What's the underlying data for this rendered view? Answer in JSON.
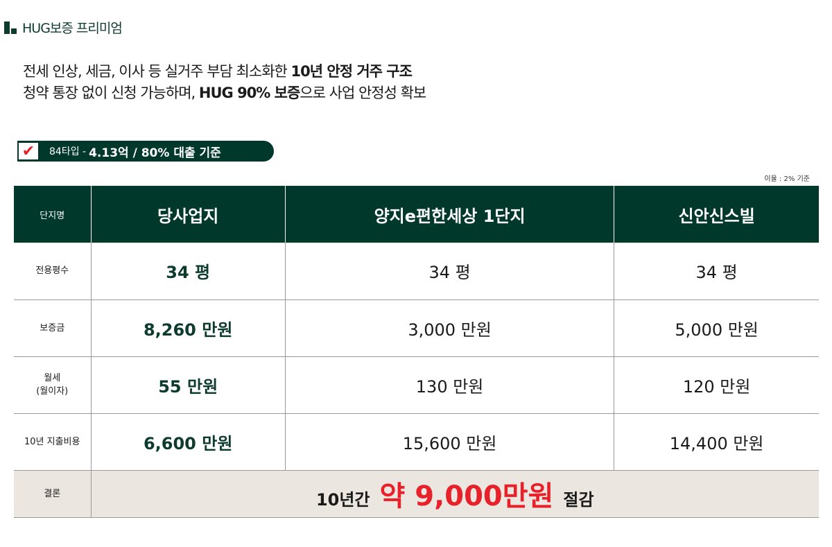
{
  "brand": {
    "title": "HUG보증 프리미엄"
  },
  "intro": {
    "line1_normal": "전세 인상, 세금, 이사 등 실거주 부담 최소화한 ",
    "line1_bold": "10년 안정 거주 구조",
    "line2_normal_a": "청약 통장 없이 신청 가능하며, ",
    "line2_bold": "HUG 90% 보증",
    "line2_normal_b": "으로 사업 안정성 확보"
  },
  "pill": {
    "icon": "checkmark-icon",
    "small": "84타입 -",
    "bold": "4.13억 / 80% 대출 기준"
  },
  "rate_note": "이율 : 2% 기준",
  "colors": {
    "dark_green": "#00382c",
    "red": "#e8202a",
    "conclusion_bg": "#ebe6df"
  },
  "table": {
    "headers": [
      "단지명",
      "당사업지",
      "양지e편한세상 1단지",
      "신안신스빌"
    ],
    "rows": [
      {
        "label": "전용평수",
        "label2": "",
        "cells": [
          "34 평",
          "34 평",
          "34 평"
        ]
      },
      {
        "label": "보증금",
        "label2": "",
        "cells": [
          "8,260 만원",
          "3,000 만원",
          "5,000 만원"
        ]
      },
      {
        "label": "월세",
        "label2": "(월이자)",
        "cells": [
          "55 만원",
          "130 만원",
          "120 만원"
        ]
      },
      {
        "label": "10년 지출비용",
        "label2": "",
        "cells": [
          "6,600 만원",
          "15,600 만원",
          "14,400 만원"
        ]
      }
    ],
    "conclusion": {
      "label": "결론",
      "pre": "10년간",
      "highlight": "약 9,000만원",
      "post": "절감"
    }
  }
}
